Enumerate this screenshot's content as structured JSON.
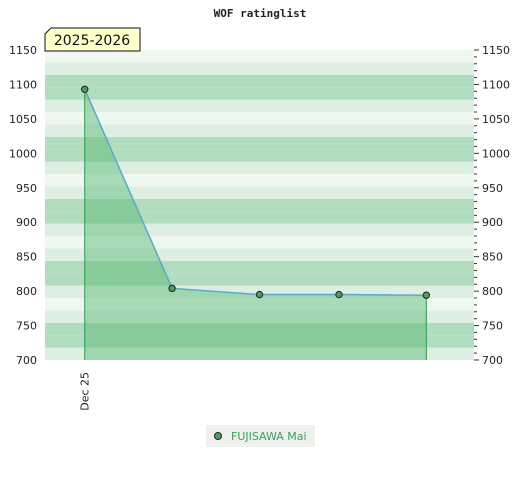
{
  "chart_data": {
    "type": "area",
    "title": "WOF ratinglist",
    "season_label": "2025-2026",
    "xlabel": "",
    "ylabel": "",
    "x_tick_labels": [
      {
        "x": 1,
        "label": "Dec 25"
      }
    ],
    "x_range": [
      0.5,
      5.9
    ],
    "ylim": [
      700,
      1150
    ],
    "y_major_step": 50,
    "y_minor_step": 10,
    "y_ticks": [
      "700",
      "750",
      "800",
      "850",
      "900",
      "950",
      "1000",
      "1050",
      "1100",
      "1150"
    ],
    "grid": true,
    "legend_position": "bottom-center",
    "series": [
      {
        "name": "FUJISAWA Mai",
        "x": [
          1,
          2.1,
          3.2,
          4.2,
          5.3
        ],
        "values": [
          1093,
          804,
          795,
          795,
          794
        ]
      }
    ]
  },
  "colors": {
    "band_dark": "#b2dcbe",
    "band_light": "#dcefe2",
    "band_pale": "#eef7f0",
    "area_fill": "#55b570",
    "line": "#5fa8c8",
    "marker_fill": "#4f9d5e",
    "legend_text": "#3aa15a",
    "season_box": "#ffffcc"
  }
}
